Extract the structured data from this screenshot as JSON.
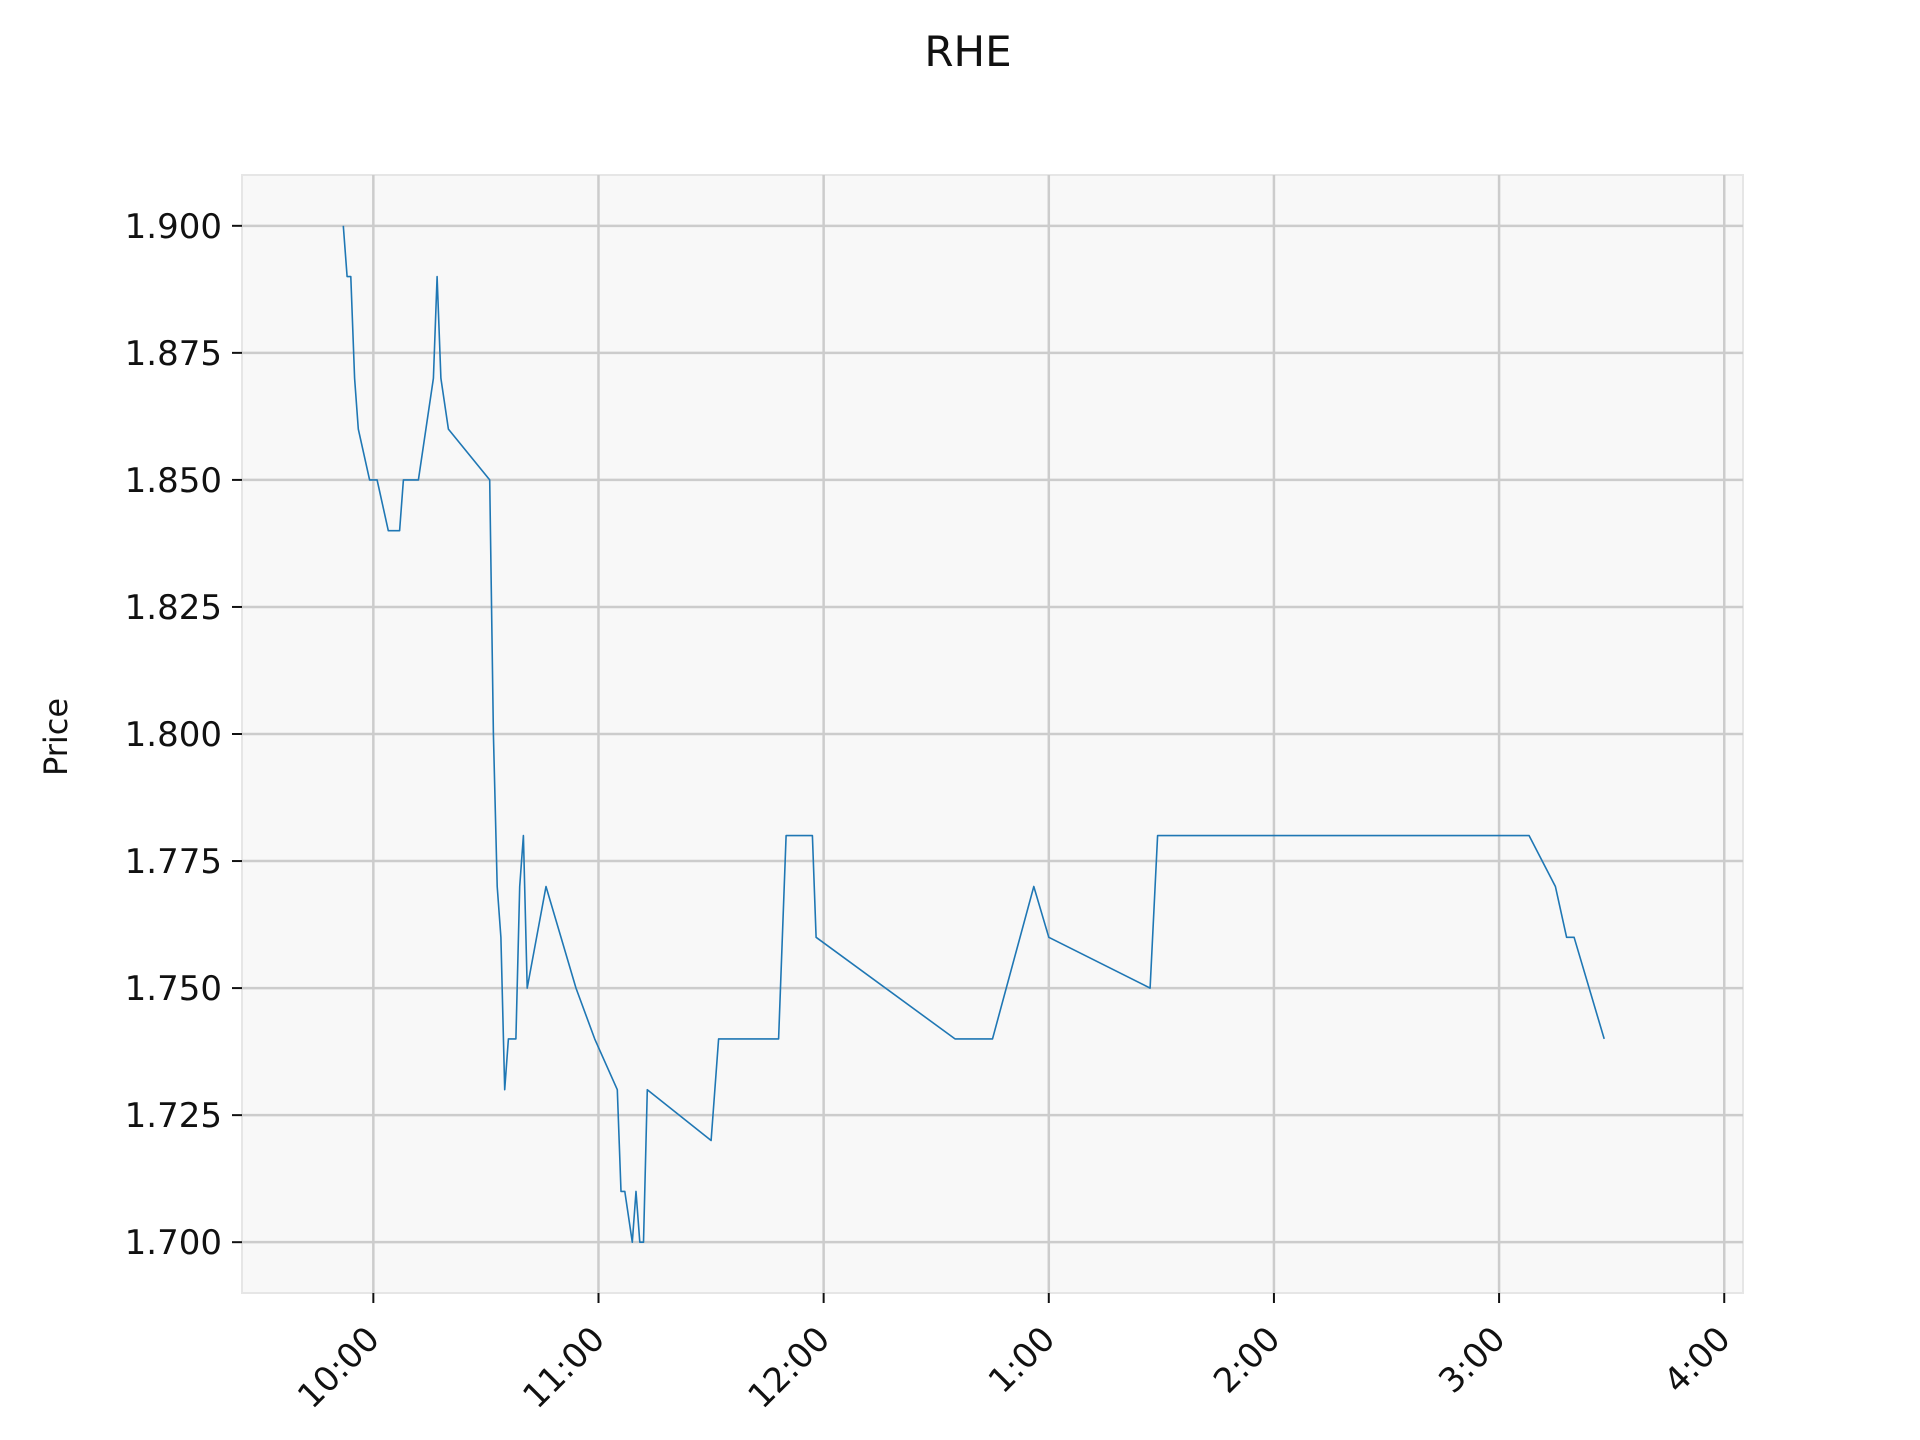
{
  "chart_data": {
    "type": "line",
    "title": "RHE",
    "xlabel": "",
    "ylabel": "Price",
    "grid": true,
    "legend": "none",
    "colors": {
      "line": "#1f77b4",
      "plot_bg": "#f8f8f8",
      "grid": "#cccccc",
      "frame": "#e6e6e6"
    },
    "x_tick_labels": [
      "10:00",
      "11:00",
      "12:00",
      "1:00",
      "2:00",
      "3:00",
      "4:00"
    ],
    "y_tick_labels": [
      "1.700",
      "1.725",
      "1.750",
      "1.775",
      "1.800",
      "1.825",
      "1.850",
      "1.875",
      "1.900"
    ],
    "ylim": [
      1.69,
      1.91
    ],
    "xlim": [
      "09:25",
      "16:05"
    ],
    "series": [
      {
        "x": [
          "09:52",
          "09:53",
          "09:54",
          "09:55",
          "09:56",
          "09:59",
          "10:00",
          "10:01",
          "10:04",
          "10:07",
          "10:08",
          "10:09",
          "10:12",
          "10:16",
          "10:17",
          "10:18",
          "10:20",
          "10:31",
          "10:32",
          "10:33",
          "10:34",
          "10:35",
          "10:36",
          "10:38",
          "10:39",
          "10:40",
          "10:41",
          "10:46",
          "10:54",
          "10:59",
          "11:05",
          "11:06",
          "11:07",
          "11:09",
          "11:10",
          "11:11",
          "11:12",
          "11:13",
          "11:30",
          "11:32",
          "11:48",
          "11:50",
          "11:57",
          "11:58",
          "12:35",
          "12:45",
          "12:56",
          "13:00",
          "13:27",
          "13:29",
          "14:00",
          "15:08",
          "15:15",
          "15:18",
          "15:20",
          "15:28"
        ],
        "y": [
          1.9,
          1.89,
          1.89,
          1.87,
          1.86,
          1.85,
          1.85,
          1.85,
          1.84,
          1.84,
          1.85,
          1.85,
          1.85,
          1.87,
          1.89,
          1.87,
          1.86,
          1.85,
          1.8,
          1.77,
          1.76,
          1.73,
          1.74,
          1.74,
          1.77,
          1.78,
          1.75,
          1.77,
          1.75,
          1.74,
          1.73,
          1.71,
          1.71,
          1.7,
          1.71,
          1.7,
          1.7,
          1.73,
          1.72,
          1.74,
          1.74,
          1.78,
          1.78,
          1.76,
          1.74,
          1.74,
          1.77,
          1.76,
          1.75,
          1.78,
          1.78,
          1.78,
          1.77,
          1.76,
          1.76,
          1.74
        ]
      }
    ]
  }
}
